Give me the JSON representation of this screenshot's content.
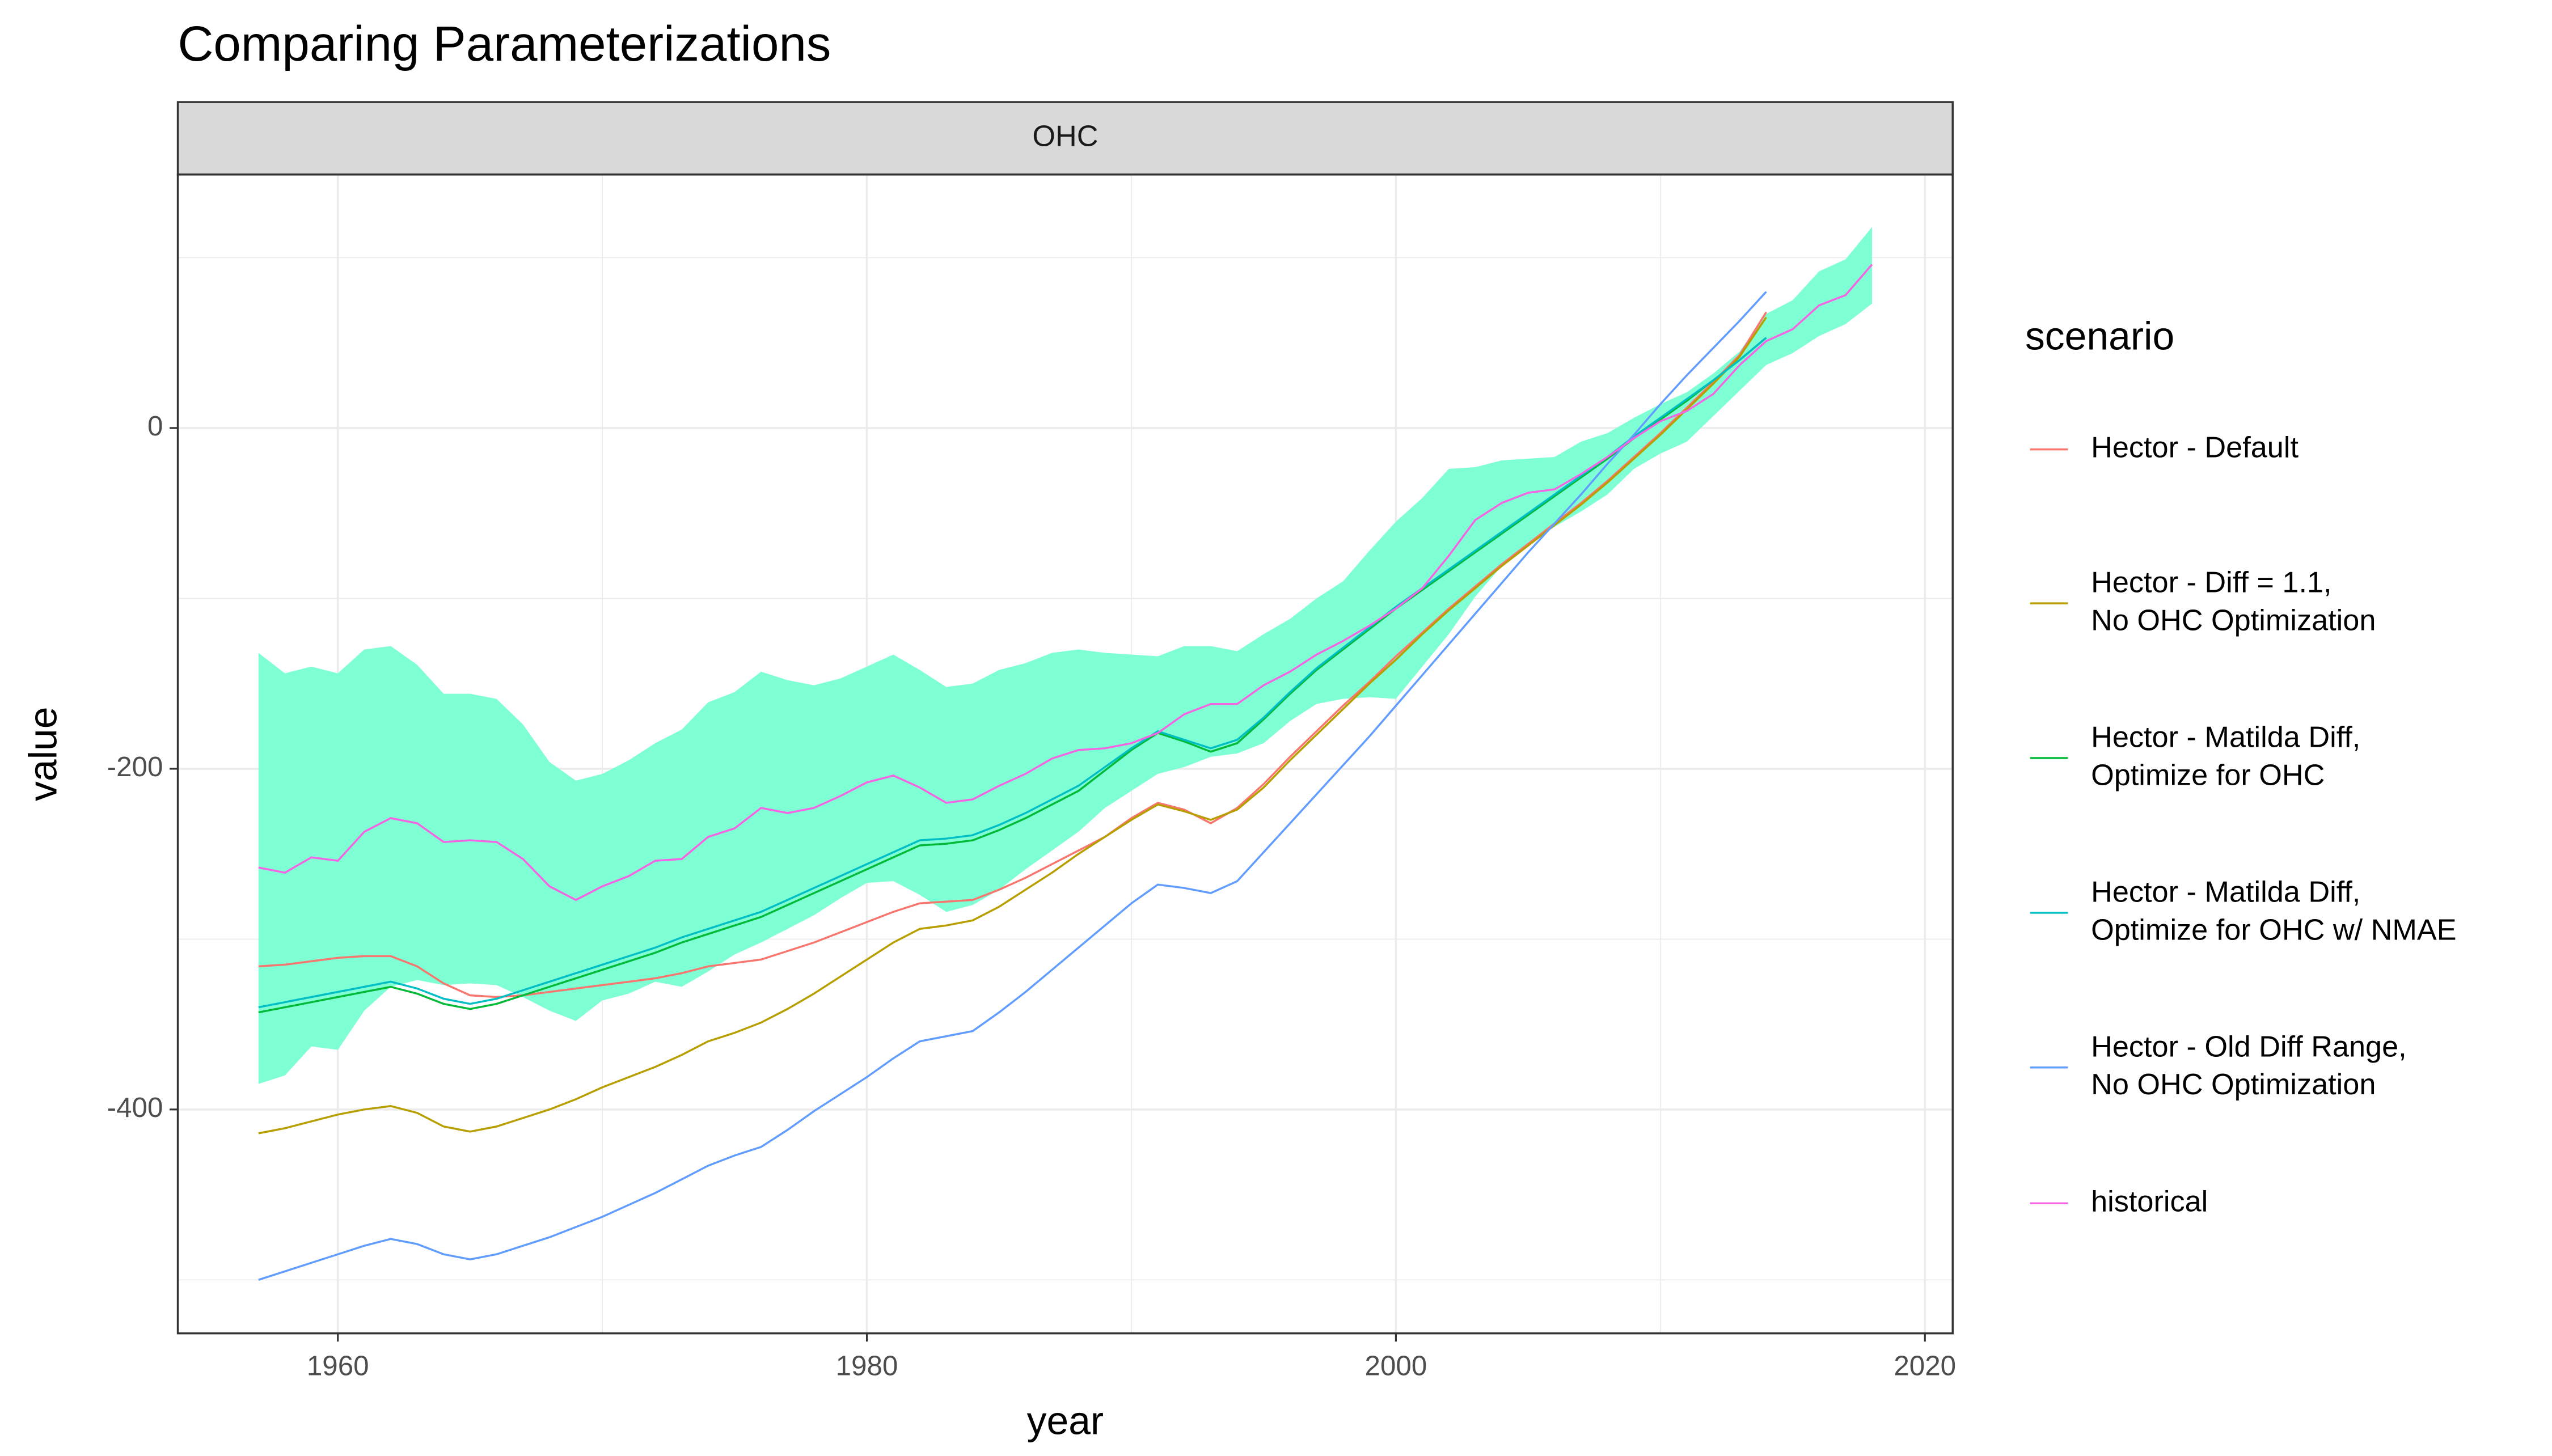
{
  "chart_data": {
    "type": "line",
    "title": "Comparing Parameterizations",
    "facet": "OHC",
    "x_label": "year",
    "y_label": "value",
    "legend_title": "scenario",
    "legend_position": "right",
    "grid": true,
    "xlim": [
      1953.95,
      2021.05
    ],
    "xticks": [
      1960,
      1980,
      2000,
      2020
    ],
    "xminorticks": [
      1970,
      1990,
      2010
    ],
    "ylim": [
      -531.4,
      148.8
    ],
    "yticks": [
      -400,
      -200,
      0
    ],
    "yminorticks": [
      -500,
      -300,
      -100,
      100
    ],
    "x": [
      1957,
      1958,
      1959,
      1960,
      1961,
      1962,
      1963,
      1964,
      1965,
      1966,
      1967,
      1968,
      1969,
      1970,
      1971,
      1972,
      1973,
      1974,
      1975,
      1976,
      1977,
      1978,
      1979,
      1980,
      1981,
      1982,
      1983,
      1984,
      1985,
      1986,
      1987,
      1988,
      1989,
      1990,
      1991,
      1992,
      1993,
      1994,
      1995,
      1996,
      1997,
      1998,
      1999,
      2000,
      2001,
      2002,
      2003,
      2004,
      2005,
      2006,
      2007,
      2008,
      2009,
      2010,
      2011,
      2012,
      2013,
      2014,
      2015,
      2016,
      2017,
      2018
    ],
    "band": {
      "color": "#7FFFD4",
      "upper": [
        -132,
        -144,
        -140,
        -144,
        -130,
        -128,
        -139,
        -156,
        -156,
        -159,
        -174,
        -196,
        -207,
        -203,
        -195,
        -185,
        -177,
        -161,
        -155,
        -143,
        -148,
        -151,
        -147,
        -140,
        -133,
        -142,
        -152,
        -150,
        -142,
        -138,
        -132,
        -130,
        -132,
        -133,
        -134,
        -128,
        -128,
        -131,
        -121,
        -112,
        -100,
        -90,
        -72,
        -55,
        -41,
        -24,
        -23,
        -19,
        -18,
        -17,
        -8,
        -3,
        6,
        14,
        21,
        32,
        45,
        67,
        75,
        92,
        99,
        118
      ],
      "lower": [
        -385,
        -380,
        -363,
        -365,
        -342,
        -328,
        -324,
        -327,
        -326,
        -327,
        -334,
        -342,
        -348,
        -336,
        -332,
        -325,
        -328,
        -319,
        -309,
        -302,
        -294,
        -286,
        -276,
        -267,
        -266,
        -274,
        -284,
        -280,
        -271,
        -259,
        -248,
        -237,
        -223,
        -213,
        -203,
        -199,
        -193,
        -191,
        -185,
        -172,
        -162,
        -159,
        -158,
        -159,
        -140,
        -121,
        -99,
        -81,
        -68,
        -58,
        -49,
        -39,
        -24,
        -15,
        -8,
        7,
        22,
        37,
        44,
        54,
        61,
        73
      ]
    },
    "series": [
      {
        "name": "Hector - Default",
        "color": "#F8766D",
        "values": [
          -316,
          -315,
          -313,
          -311,
          -310,
          -310,
          -316,
          -326,
          -333,
          -334,
          -333,
          -331,
          -329,
          -327,
          -325,
          -323,
          -320,
          -316,
          -314,
          -312,
          -307,
          -302,
          -296,
          -290,
          -284,
          -279,
          -278,
          -277,
          -271,
          -264,
          -256,
          -248,
          -240,
          -229,
          -220,
          -224,
          -232,
          -223,
          -209,
          -193,
          -178,
          -163,
          -149,
          -134,
          -120,
          -106,
          -93,
          -80,
          -68,
          -56,
          -44,
          -31,
          -17,
          -3,
          12,
          27,
          43,
          68,
          null,
          null,
          null,
          null
        ]
      },
      {
        "name": "Hector - Diff = 1.1,\nNo OHC Optimization",
        "color": "#B79F00",
        "values": [
          -414,
          -411,
          -407,
          -403,
          -400,
          -398,
          -402,
          -410,
          -413,
          -410,
          -405,
          -400,
          -394,
          -387,
          -381,
          -375,
          -368,
          -360,
          -355,
          -349,
          -341,
          -332,
          -322,
          -312,
          -302,
          -294,
          -292,
          -289,
          -281,
          -271,
          -261,
          -250,
          -240,
          -230,
          -221,
          -225,
          -230,
          -224,
          -211,
          -195,
          -180,
          -165,
          -150,
          -136,
          -121,
          -107,
          -94,
          -81,
          -69,
          -57,
          -45,
          -32,
          -18,
          -4,
          11,
          26,
          42,
          65,
          null,
          null,
          null,
          null
        ]
      },
      {
        "name": "Hector - Matilda Diff,\nOptimize for OHC",
        "color": "#00BA38",
        "values": [
          -343,
          -340,
          -337,
          -334,
          -331,
          -328,
          -332,
          -338,
          -341,
          -338,
          -333,
          -328,
          -323,
          -318,
          -313,
          -308,
          -302,
          -297,
          -292,
          -287,
          -280,
          -273,
          -266,
          -259,
          -252,
          -245,
          -244,
          -242,
          -236,
          -229,
          -221,
          -213,
          -201,
          -189,
          -179,
          -184,
          -190,
          -185,
          -171,
          -156,
          -142,
          -130,
          -118,
          -106,
          -95,
          -84,
          -73,
          -62,
          -51,
          -40,
          -29,
          -18,
          -6,
          5,
          16,
          28,
          40,
          53,
          null,
          null,
          null,
          null
        ]
      },
      {
        "name": "Hector - Matilda Diff,\nOptimize for OHC w/ NMAE",
        "color": "#00BFC4",
        "values": [
          -340,
          -337,
          -334,
          -331,
          -328,
          -325,
          -329,
          -335,
          -338,
          -335,
          -330,
          -325,
          -320,
          -315,
          -310,
          -305,
          -299,
          -294,
          -289,
          -284,
          -277,
          -270,
          -263,
          -256,
          -249,
          -242,
          -241,
          -239,
          -233,
          -226,
          -218,
          -210,
          -199,
          -188,
          -178,
          -183,
          -188,
          -183,
          -170,
          -155,
          -141,
          -129,
          -117,
          -105,
          -94,
          -83,
          -72,
          -61,
          -50,
          -39,
          -28,
          -17,
          -5,
          6,
          17,
          28,
          40,
          53,
          null,
          null,
          null,
          null
        ]
      },
      {
        "name": "Hector - Old Diff Range,\nNo OHC Optimization",
        "color": "#619CFF",
        "values": [
          -500,
          -495,
          -490,
          -485,
          -480,
          -476,
          -479,
          -485,
          -488,
          -485,
          -480,
          -475,
          -469,
          -463,
          -456,
          -449,
          -441,
          -433,
          -427,
          -422,
          -412,
          -401,
          -391,
          -381,
          -370,
          -360,
          -357,
          -354,
          -343,
          -331,
          -318,
          -305,
          -292,
          -279,
          -268,
          -270,
          -273,
          -266,
          -249,
          -232,
          -215,
          -198,
          -181,
          -163,
          -145,
          -127,
          -109,
          -91,
          -73,
          -56,
          -39,
          -21,
          -4,
          14,
          31,
          47,
          63,
          80,
          null,
          null,
          null,
          null
        ]
      },
      {
        "name": "historical",
        "color": "#F564E3",
        "values": [
          -258,
          -261,
          -252,
          -254,
          -237,
          -229,
          -232,
          -243,
          -242,
          -243,
          -253,
          -269,
          -277,
          -269,
          -263,
          -254,
          -253,
          -240,
          -235,
          -223,
          -226,
          -223,
          -216,
          -208,
          -204,
          -211,
          -220,
          -218,
          -210,
          -203,
          -194,
          -189,
          -188,
          -185,
          -179,
          -168,
          -162,
          -162,
          -151,
          -143,
          -133,
          -125,
          -116,
          -106,
          -94,
          -75,
          -54,
          -44,
          -38,
          -36,
          -27,
          -17,
          -6,
          4,
          10,
          20,
          37,
          51,
          58,
          72,
          78,
          96
        ]
      }
    ]
  }
}
